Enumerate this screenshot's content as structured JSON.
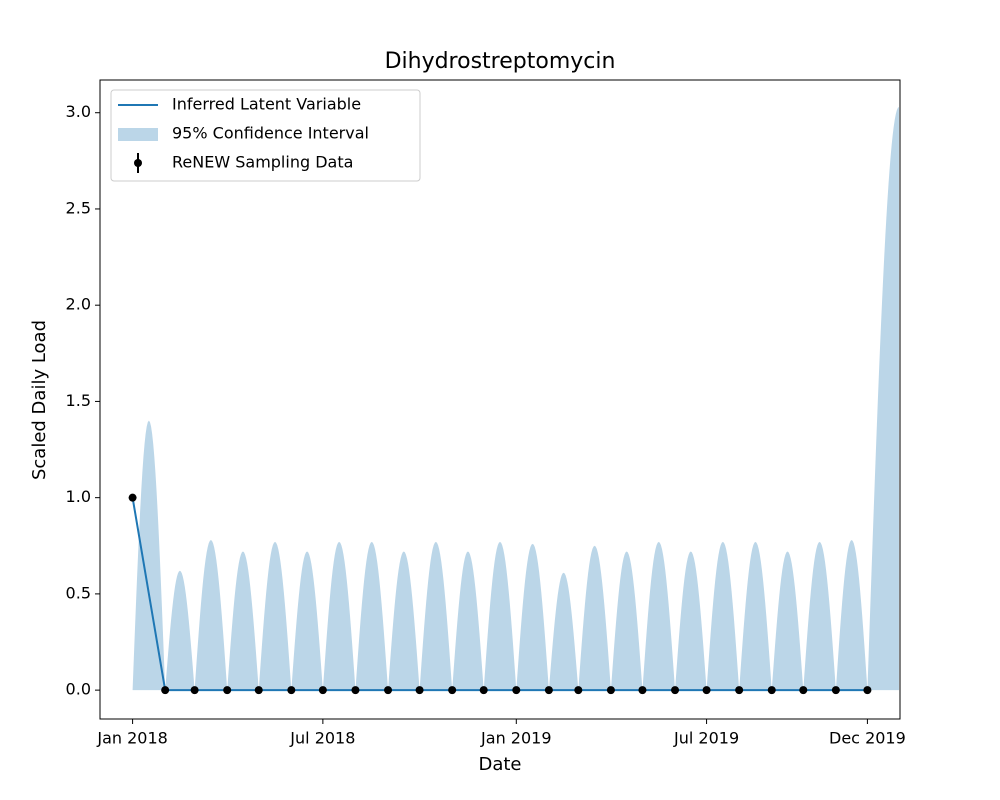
{
  "chart_data": {
    "type": "line",
    "title": "Dihydrostreptomycin",
    "xlabel": "Date",
    "ylabel": "Scaled Daily Load",
    "x": [
      "2018-01",
      "2018-02",
      "2018-03",
      "2018-04",
      "2018-05",
      "2018-06",
      "2018-07",
      "2018-08",
      "2018-09",
      "2018-10",
      "2018-11",
      "2018-12",
      "2019-01",
      "2019-02",
      "2019-03",
      "2019-04",
      "2019-05",
      "2019-06",
      "2019-07",
      "2019-08",
      "2019-09",
      "2019-10",
      "2019-11",
      "2019-12"
    ],
    "series": [
      {
        "name": "Inferred Latent Variable",
        "color": "#1f77b4",
        "values": [
          1.0,
          0,
          0,
          0,
          0,
          0,
          0,
          0,
          0,
          0,
          0,
          0,
          0,
          0,
          0,
          0,
          0,
          0,
          0,
          0,
          0,
          0,
          0,
          0
        ]
      }
    ],
    "band": {
      "name": "95% Confidence Interval",
      "color": "#1f77b4",
      "upper": [
        1.4,
        0.62,
        0.78,
        0.72,
        0.77,
        0.72,
        0.77,
        0.77,
        0.72,
        0.77,
        0.72,
        0.77,
        0.76,
        0.61,
        0.75,
        0.72,
        0.77,
        0.72,
        0.77,
        0.77,
        0.72,
        0.77,
        0.78,
        3.03
      ]
    },
    "points": {
      "name": "ReNEW Sampling Data",
      "color": "#000000",
      "values": [
        1.0,
        0,
        0,
        0,
        0,
        0,
        0,
        0,
        0,
        0,
        0,
        0,
        0,
        0,
        0,
        0,
        0,
        0,
        0,
        0,
        0,
        0,
        0,
        0
      ]
    },
    "xlim": [
      "2017-12",
      "2020-01"
    ],
    "ylim": [
      -0.15,
      3.17
    ],
    "xticks": [
      {
        "value": "2018-01",
        "label": "Jan 2018"
      },
      {
        "value": "2018-07",
        "label": "Jul 2018"
      },
      {
        "value": "2019-01",
        "label": "Jan 2019"
      },
      {
        "value": "2019-07",
        "label": "Jul 2019"
      },
      {
        "value": "2019-12",
        "label": "Dec 2019"
      }
    ],
    "yticks": [
      {
        "value": 0,
        "label": "0.0"
      },
      {
        "value": 0.5,
        "label": "0.5"
      },
      {
        "value": 1,
        "label": "1.0"
      },
      {
        "value": 1.5,
        "label": "1.5"
      },
      {
        "value": 2,
        "label": "2.0"
      },
      {
        "value": 2.5,
        "label": "2.5"
      },
      {
        "value": 3,
        "label": "3.0"
      }
    ],
    "legend": "upper left"
  }
}
